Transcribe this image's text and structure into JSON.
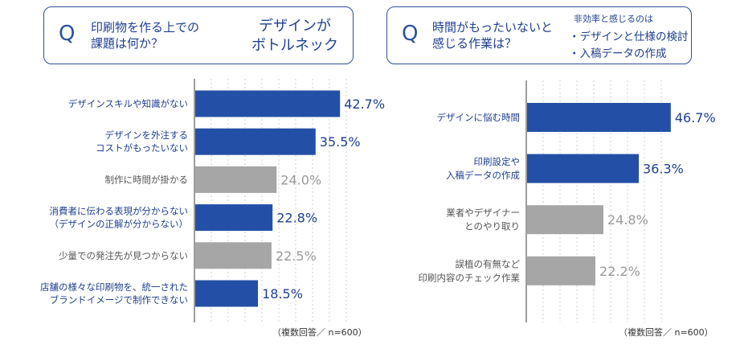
{
  "left_panel": {
    "q_letter": "Q",
    "question": "印刷物を作る上での\n課題は何か？",
    "answer": "デザインが\nボトルネック",
    "footnote": "（複数回答／ n=600）"
  },
  "right_panel": {
    "q_letter": "Q",
    "question": "時間がもったいないと\n感じる作業は？",
    "note_title": "非効率と感じるのは",
    "note_items": [
      "・デザインと仕様の検討",
      "・入稿データの作成"
    ],
    "footnote": "（複数回答／ n=600）"
  },
  "colors": {
    "highlight": "#2350a6",
    "muted": "#a6a6a6",
    "highlight_text": "#1f3f8f",
    "muted_text": "#9a9a9a",
    "border": "#2c4f9e"
  },
  "chart_data": [
    {
      "type": "bar",
      "orientation": "horizontal",
      "categories": [
        "デザインスキルや知識がない",
        "デザインを外注する\nコストがもったいない",
        "制作に時間が掛かる",
        "消費者に伝わる表現が分からない\n（デザインの正解が分からない）",
        "少量での発注先が見つからない",
        "店舗の様々な印刷物を、統一された\nブランドイメージで制作できない"
      ],
      "values": [
        42.7,
        35.5,
        24.0,
        22.8,
        22.5,
        18.5
      ],
      "value_labels": [
        "42.7%",
        "35.5%",
        "24.0%",
        "22.8%",
        "22.5%",
        "18.5%"
      ],
      "highlighted": [
        true,
        true,
        false,
        true,
        false,
        true
      ],
      "grid": true
    },
    {
      "type": "bar",
      "orientation": "horizontal",
      "categories": [
        "デザインに悩む時間",
        "印刷設定や\n入稿データの作成",
        "業者やデザイナー\nとのやり取り",
        "誤植の有無など\n印刷内容のチェック作業"
      ],
      "values": [
        46.7,
        36.3,
        24.8,
        22.2
      ],
      "value_labels": [
        "46.7%",
        "36.3%",
        "24.8%",
        "22.2%"
      ],
      "highlighted": [
        true,
        true,
        false,
        false
      ],
      "grid": true
    }
  ]
}
